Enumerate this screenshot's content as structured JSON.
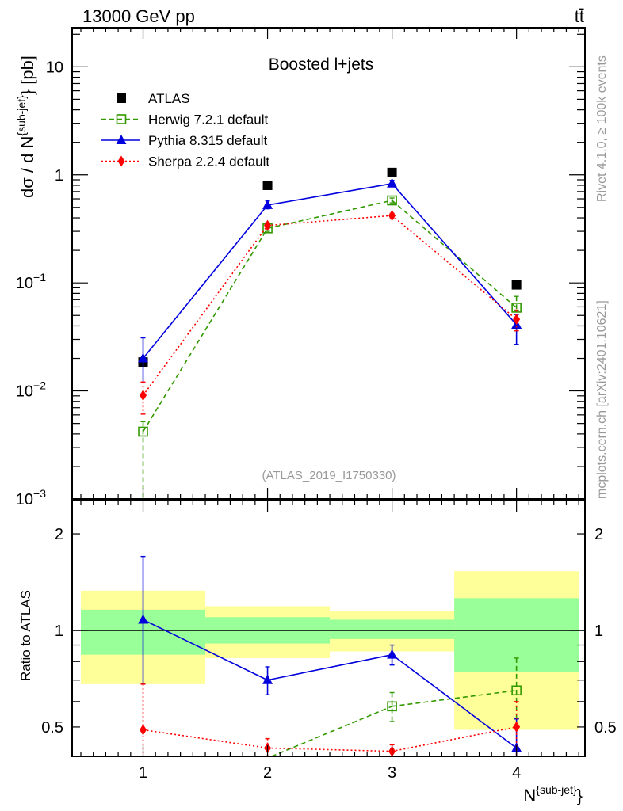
{
  "chart_data": [
    {
      "type": "line",
      "panel": "main",
      "title": "Boosted l+jets",
      "header_left": "13000 GeV pp",
      "header_right": "tt̄",
      "ylabel": "dσ / d N",
      "ylabel_sup": "{sub-jet}",
      "ylabel_unit": "} [pb]",
      "yscale": "log",
      "ylim": [
        0.001,
        23
      ],
      "xlim": [
        0.43,
        4.55
      ],
      "yticks": [
        {
          "v": 10,
          "label": "10"
        },
        {
          "v": 1,
          "label": "1"
        },
        {
          "v": 0.1,
          "label": "10",
          "exp": "−1"
        },
        {
          "v": 0.01,
          "label": "10",
          "exp": "−2"
        },
        {
          "v": 0.001,
          "label": "10",
          "exp": "−3"
        }
      ],
      "x": [
        1,
        2,
        3,
        4
      ],
      "legend_position": "top-left",
      "watermark": "(ATLAS_2019_I1750330)",
      "side_text_top": "Rivet 4.1.0, ≥ 100k events",
      "side_text_bottom": "mcplots.cern.ch [arXiv:2401.10621]",
      "series": [
        {
          "name": "ATLAS",
          "color": "#000000",
          "marker": "square",
          "line": "none",
          "values": [
            0.0185,
            0.8,
            1.05,
            0.096
          ],
          "err": [
            0,
            0,
            0,
            0
          ]
        },
        {
          "name": "Herwig 7.2.1 default",
          "color": "#339900",
          "marker": "open-square",
          "line": "dashed",
          "values": [
            0.0042,
            0.32,
            0.58,
            0.059
          ],
          "err_lo": [
            0.0039,
            0.02,
            0.03,
            0.004
          ],
          "err_hi": [
            0.001,
            0.02,
            0.03,
            0.016
          ]
        },
        {
          "name": "Pythia 8.315 default",
          "color": "#0000dd",
          "marker": "triangle",
          "line": "solid",
          "values": [
            0.02,
            0.525,
            0.83,
            0.041
          ],
          "err_lo": [
            0.008,
            0.04,
            0.05,
            0.014
          ],
          "err_hi": [
            0.011,
            0.05,
            0.06,
            0.01
          ]
        },
        {
          "name": "Sherpa 2.2.4 default",
          "color": "#ff0000",
          "marker": "diamond",
          "line": "dotted",
          "values": [
            0.0091,
            0.34,
            0.42,
            0.046
          ],
          "err_lo": [
            0.003,
            0.02,
            0.02,
            0.01
          ],
          "err_hi": [
            0.003,
            0.02,
            0.02,
            0.01
          ]
        }
      ]
    },
    {
      "type": "line",
      "panel": "ratio",
      "ylabel": "Ratio to ATLAS",
      "xlabel": "N",
      "xlabel_sup": "{sub-jet}",
      "xlabel_close": "}",
      "yscale": "log",
      "ylim": [
        0.405,
        2.54
      ],
      "xlim": [
        0.43,
        4.55
      ],
      "yticks": [
        {
          "v": 2,
          "label": "2"
        },
        {
          "v": 1,
          "label": "1"
        },
        {
          "v": 0.5,
          "label": "0.5"
        }
      ],
      "xticks": [
        {
          "v": 1,
          "label": "1"
        },
        {
          "v": 2,
          "label": "2"
        },
        {
          "v": 3,
          "label": "3"
        },
        {
          "v": 4,
          "label": "4"
        }
      ],
      "bands": {
        "bin_edges": [
          0.5,
          1.5,
          2.5,
          3.5,
          4.5
        ],
        "yellow": {
          "color": "#ffff99",
          "lo": [
            0.68,
            0.82,
            0.86,
            0.49
          ],
          "hi": [
            1.33,
            1.19,
            1.15,
            1.53
          ]
        },
        "green": {
          "color": "#99ff99",
          "lo": [
            0.84,
            0.91,
            0.94,
            0.74
          ],
          "hi": [
            1.16,
            1.1,
            1.08,
            1.26
          ]
        }
      },
      "x": [
        1,
        2,
        3,
        4
      ],
      "series": [
        {
          "name": "Herwig 7.2.1 default",
          "color": "#339900",
          "marker": "open-square",
          "line": "dashed",
          "values": [
            0.23,
            0.4,
            0.58,
            0.65
          ],
          "err_lo": [
            0.2,
            0.03,
            0.06,
            0.12
          ],
          "err_hi": [
            0.05,
            0.03,
            0.06,
            0.17
          ]
        },
        {
          "name": "Pythia 8.315 default",
          "color": "#0000dd",
          "marker": "triangle",
          "line": "solid",
          "values": [
            1.08,
            0.7,
            0.84,
            0.43
          ],
          "err_lo": [
            0.4,
            0.07,
            0.06,
            0.1
          ],
          "err_hi": [
            0.62,
            0.07,
            0.06,
            0.1
          ]
        },
        {
          "name": "Sherpa 2.2.4 default",
          "color": "#ff0000",
          "marker": "diamond",
          "line": "dotted",
          "values": [
            0.49,
            0.43,
            0.42,
            0.5
          ],
          "err_lo": [
            0.09,
            0.03,
            0.02,
            0.1
          ],
          "err_hi": [
            0.19,
            0.03,
            0.02,
            0.1
          ]
        }
      ]
    }
  ]
}
